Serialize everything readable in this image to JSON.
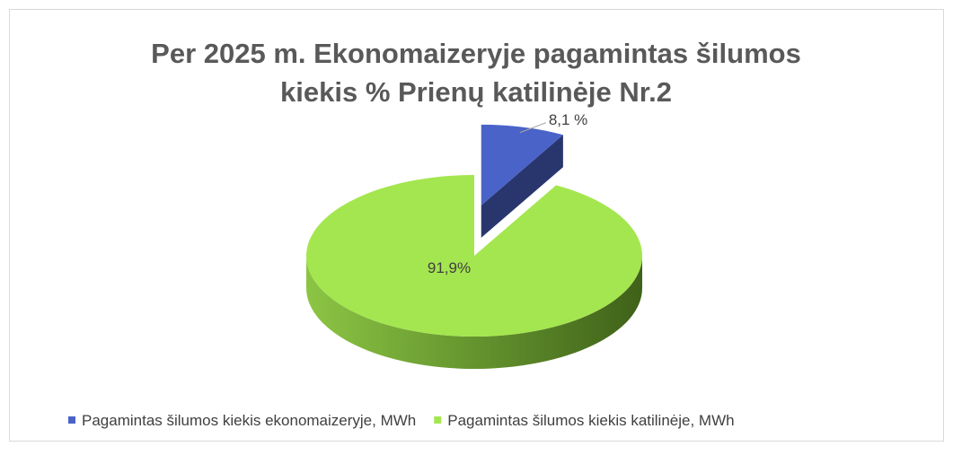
{
  "chart_data": {
    "type": "pie",
    "title": "Per 2025 m. Ekonomaizeryje pagamintas šilumos kiekis % Prienų katilinėje Nr.2",
    "categories": [
      "Pagamintas šilumos kiekis ekonomaizeryje, MWh",
      "Pagamintas šilumos kiekis katilinėje, MWh"
    ],
    "values": [
      8.1,
      91.9
    ],
    "value_labels": [
      "8,1 %",
      "91,9%"
    ],
    "colors": [
      "#4a63c8",
      "#a4e64f"
    ],
    "legend": "bottom"
  }
}
